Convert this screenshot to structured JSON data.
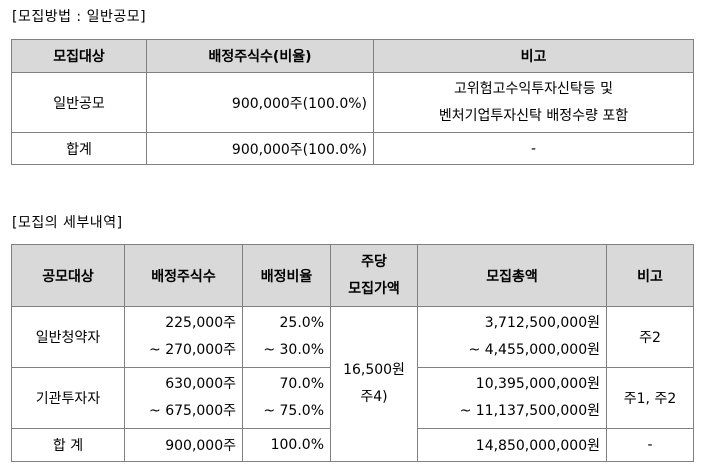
{
  "section1": {
    "title": "[모집방법 : 일반공모]",
    "headers": [
      "모집대상",
      "배정주식수(비율)",
      "비고"
    ],
    "rows": [
      {
        "target": "일반공모",
        "shares": "900,000주(100.0%)",
        "note_lines": [
          "고위험고수익투자신탁등 및",
          "벤처기업투자신탁 배정수량 포함"
        ]
      },
      {
        "target": "합계",
        "shares": "900,000주(100.0%)",
        "note_lines": [
          "-"
        ]
      }
    ]
  },
  "section2": {
    "title": "[모집의 세부내역]",
    "headers": {
      "target": "공모대상",
      "shares": "배정주식수",
      "ratio": "배정비율",
      "price_lines": [
        "주당",
        "모집가액"
      ],
      "total": "모집총액",
      "note": "비고"
    },
    "rows": [
      {
        "target": "일반청약자",
        "shares_lines": [
          "225,000주",
          "~ 270,000주"
        ],
        "ratio_lines": [
          "25.0%",
          "~ 30.0%"
        ],
        "total_lines": [
          "3,712,500,000원",
          "~ 4,455,000,000원"
        ],
        "note": "주2"
      },
      {
        "target": "기관투자자",
        "shares_lines": [
          "630,000주",
          "~ 675,000주"
        ],
        "ratio_lines": [
          "70.0%",
          "~ 75.0%"
        ],
        "total_lines": [
          "10,395,000,000원",
          "~ 11,137,500,000원"
        ],
        "note": "주1, 주2"
      },
      {
        "target": "합 계",
        "shares_lines": [
          "900,000주"
        ],
        "ratio_lines": [
          "100.0%"
        ],
        "total_lines": [
          "14,850,000,000원"
        ],
        "note": "-"
      }
    ],
    "price_lines": [
      "16,500원",
      "주4)"
    ]
  }
}
